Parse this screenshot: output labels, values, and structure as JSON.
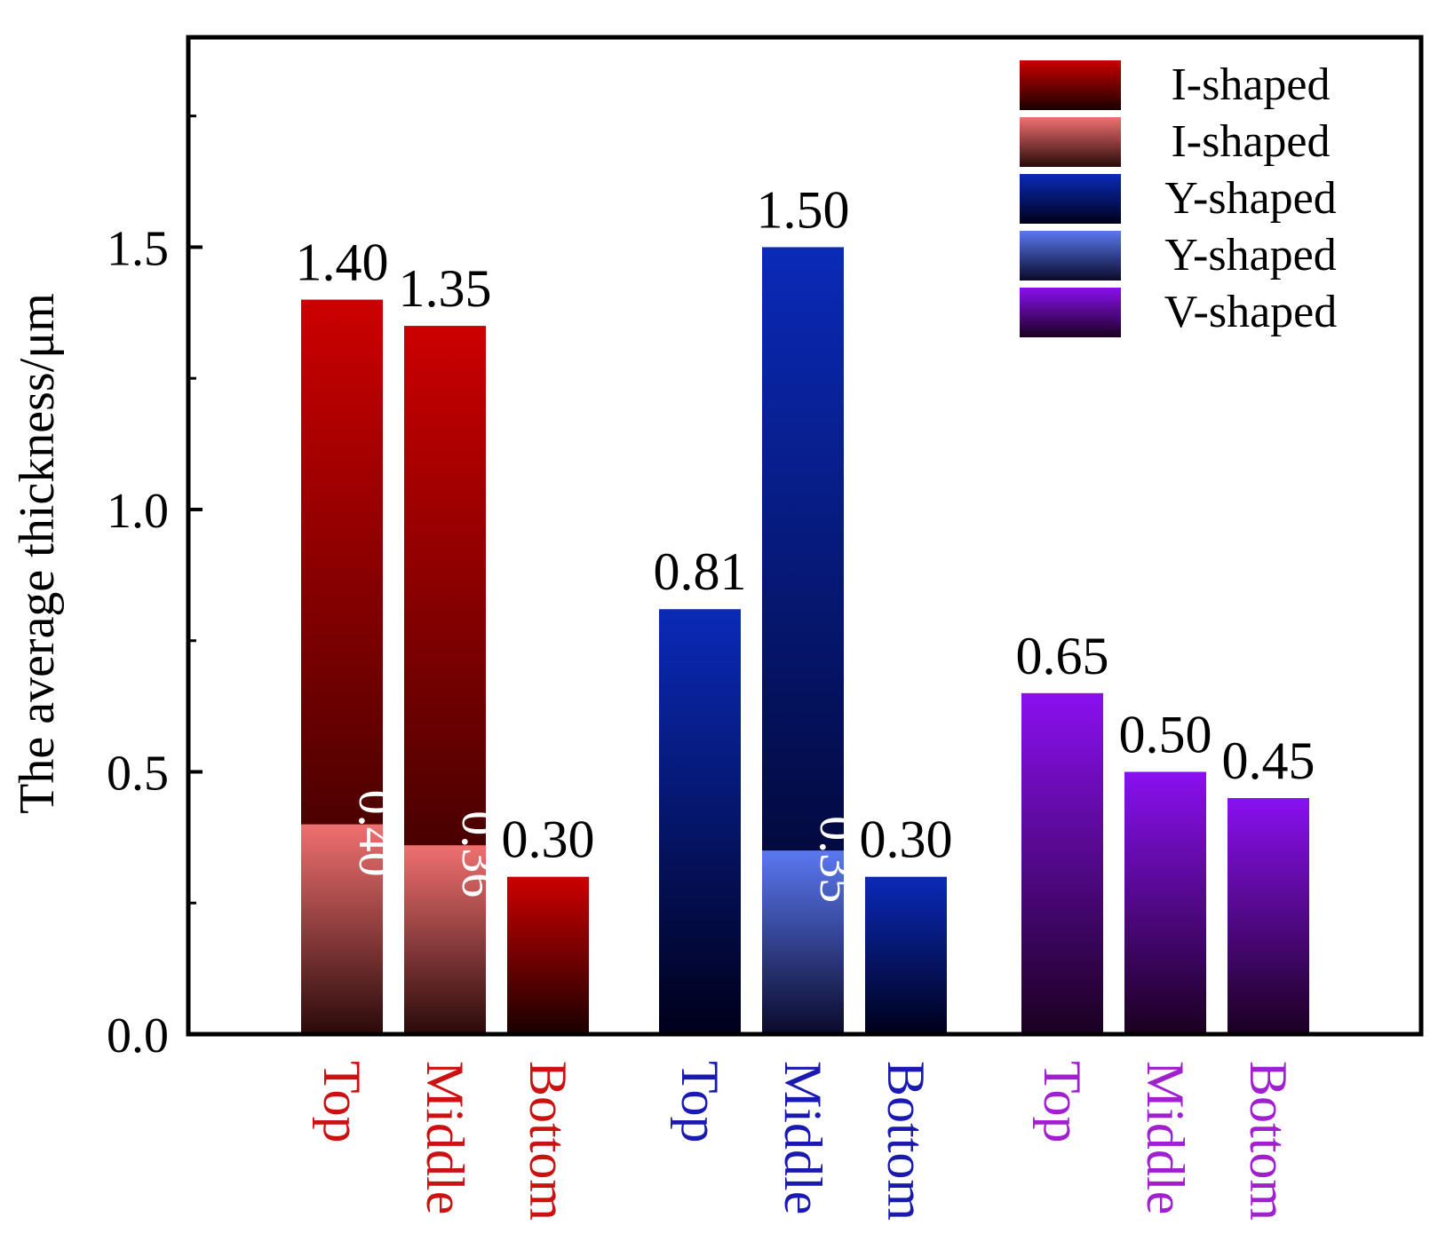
{
  "chart_data": {
    "type": "bar",
    "ylabel": "The average thickness/μm",
    "ylim": [
      0,
      1.9
    ],
    "yticks": [
      "0.0",
      "0.5",
      "1.0",
      "1.5"
    ],
    "y_tick_values": [
      0,
      0.5,
      1.0,
      1.5
    ],
    "legend_position": "top-right",
    "legend": [
      {
        "label": "I-shaped",
        "top_color": "#cc0000",
        "bottom_color": "#1a0000"
      },
      {
        "label": "I-shaped",
        "top_color": "#f07070",
        "bottom_color": "#2a0a0a"
      },
      {
        "label": "Y-shaped",
        "top_color": "#0a2ab8",
        "bottom_color": "#00001a"
      },
      {
        "label": "Y-shaped",
        "top_color": "#5a78f0",
        "bottom_color": "#0a0a2a"
      },
      {
        "label": "V-shaped",
        "top_color": "#8a10f0",
        "bottom_color": "#1a0020"
      }
    ],
    "groups": [
      {
        "name": "I-shaped",
        "label_color": "#cc1111",
        "bars": [
          {
            "category": "Top",
            "total": 1.4,
            "total_label": "1.40",
            "inner": 0.4,
            "inner_label": "0.40"
          },
          {
            "category": "Middle",
            "total": 1.35,
            "total_label": "1.35",
            "inner": 0.36,
            "inner_label": "0.36"
          },
          {
            "category": "Bottom",
            "total": 0.3,
            "total_label": "0.30"
          }
        ]
      },
      {
        "name": "Y-shaped",
        "label_color": "#1a1ab0",
        "bars": [
          {
            "category": "Top",
            "total": 0.81,
            "total_label": "0.81"
          },
          {
            "category": "Middle",
            "total": 1.5,
            "total_label": "1.50",
            "inner": 0.35,
            "inner_label": "0.35"
          },
          {
            "category": "Bottom",
            "total": 0.3,
            "total_label": "0.30"
          }
        ]
      },
      {
        "name": "V-shaped",
        "label_color": "#a020d0",
        "bars": [
          {
            "category": "Top",
            "total": 0.65,
            "total_label": "0.65"
          },
          {
            "category": "Middle",
            "total": 0.5,
            "total_label": "0.50"
          },
          {
            "category": "Bottom",
            "total": 0.45,
            "total_label": "0.45"
          }
        ]
      }
    ]
  }
}
